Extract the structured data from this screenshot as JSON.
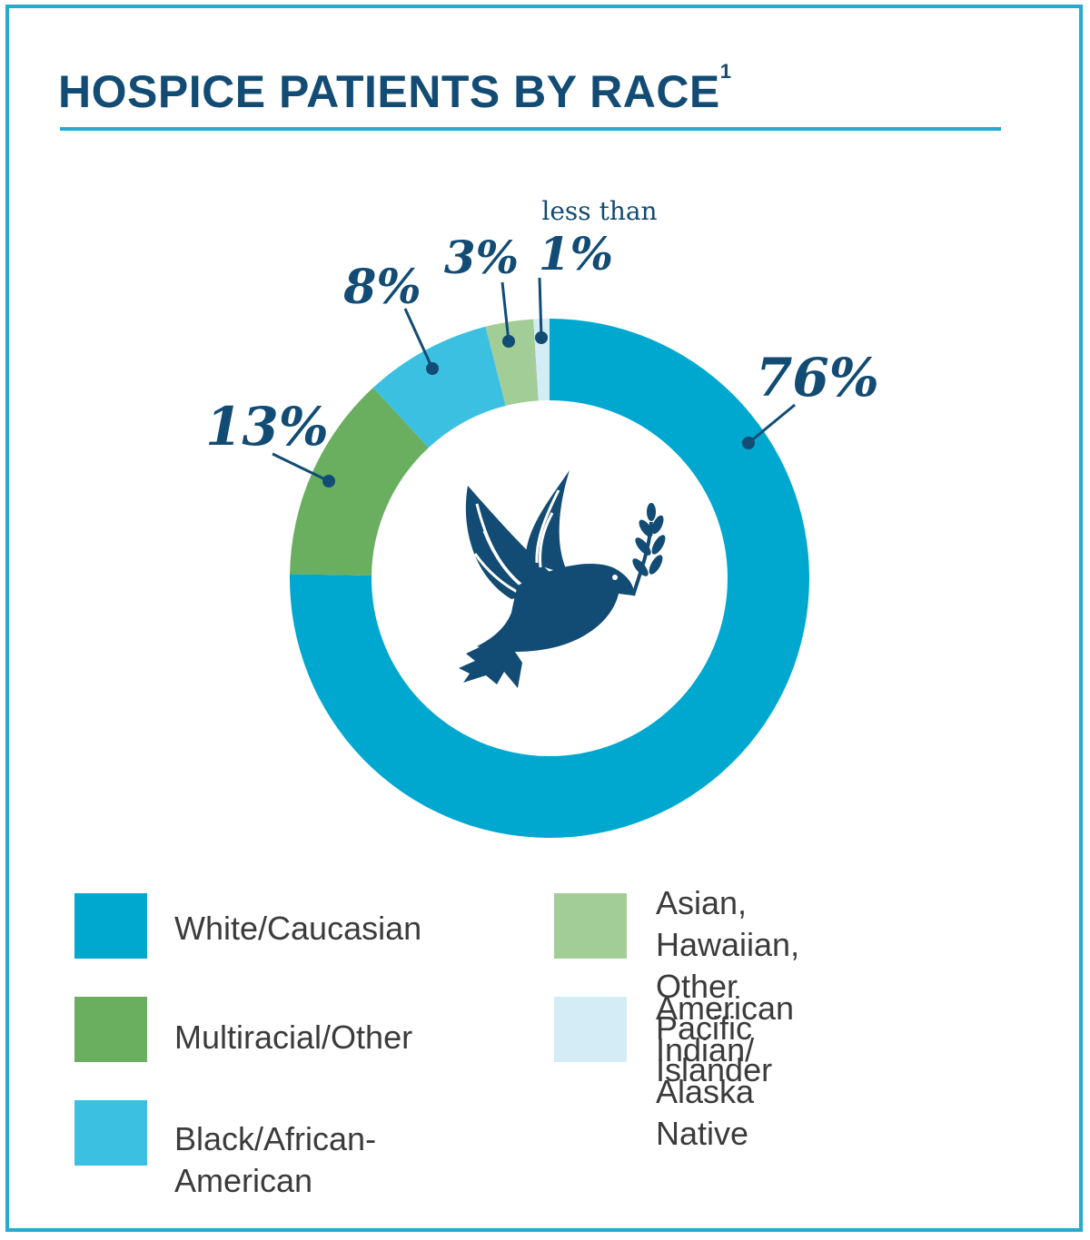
{
  "chart_data": {
    "type": "pie",
    "title": "HOSPICE PATIENTS BY RACE",
    "title_footnote": "1",
    "slices": [
      {
        "label": "White/Caucasian",
        "value": 76,
        "display": "76%",
        "color": "#00a8d0"
      },
      {
        "label": "Multiracial/Other",
        "value": 13,
        "display": "13%",
        "color": "#6aae60"
      },
      {
        "label": "Black/African-American",
        "value": 8,
        "display": "8%",
        "color": "#3cc0e2"
      },
      {
        "label": "Asian, Hawaiian,\nOther Pacific Islander",
        "value": 3,
        "display": "3%",
        "color": "#a3cd97"
      },
      {
        "label": "American Indian/\nAlaska Native",
        "value": 1,
        "display": "1%",
        "note": "less than",
        "color": "#d3ecf5"
      }
    ],
    "center_icon": "dove-with-olive-branch-icon",
    "legend_position": "bottom"
  },
  "colors": {
    "frame": "#26aad0",
    "text_dark": "#124b73"
  }
}
